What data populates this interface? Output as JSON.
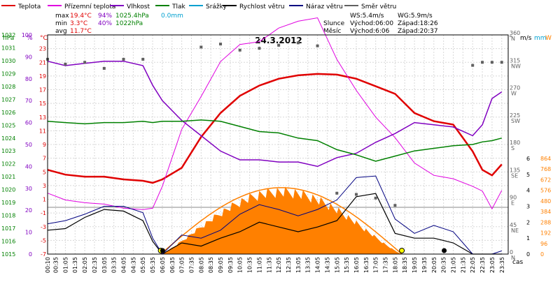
{
  "legend": [
    {
      "label": "Teplota",
      "color": "#e00000"
    },
    {
      "label": "Přízemní teplota",
      "color": "#e000e0"
    },
    {
      "label": "Vlhkost",
      "color": "#8000c0"
    },
    {
      "label": "Tlak",
      "color": "#008000"
    },
    {
      "label": "Srážky",
      "color": "#00a0d0"
    },
    {
      "label": "Rychlost větru",
      "color": "#000000"
    },
    {
      "label": "Náraz větru",
      "color": "#000080"
    },
    {
      "label": "Směr větru",
      "color": "#606060"
    }
  ],
  "stats": {
    "max_label": "max",
    "min_label": "min",
    "avg_label": "avg",
    "max_temp": "19.4°C",
    "max_hum": "94%",
    "max_press": "1025.4hPa",
    "max_rain": "0.0mm",
    "min_temp": "3.3°C",
    "min_hum": "40%",
    "min_press": "1022hPa",
    "avg_temp": "11.7°C"
  },
  "wind": {
    "ws": "WS:5.4m/s",
    "wg": "WG:5.9m/s"
  },
  "sun": {
    "label": "Slunce",
    "rise": "Východ:06:00",
    "set": "Západ:18:26"
  },
  "moon": {
    "label": "Měsíc",
    "rise": "Východ:6:06",
    "set": "Západ:20:37"
  },
  "date": "24.3.2012",
  "axis_units": {
    "hpa": "hPa",
    "pct": "%",
    "degc": "°C",
    "deg": "°",
    "ms": "m/s",
    "mm": "mm",
    "wm2": "W",
    "time": "čas"
  },
  "axes": {
    "pressure": [
      "1032",
      "1031",
      "1030",
      "1029",
      "1028",
      "1027",
      "1026",
      "1025",
      "1024",
      "1023",
      "1022",
      "1021",
      "1020",
      "1019",
      "1018",
      "1017",
      "1016",
      "1015"
    ],
    "humidity": [
      "100",
      "90",
      "80",
      "70",
      "60",
      "50",
      "40",
      "30",
      "20",
      "10",
      "0"
    ],
    "temperature": [
      "23",
      "21",
      "19",
      "17",
      "15",
      "13",
      "11",
      "9",
      "7",
      "5",
      "3",
      "1",
      "-1",
      "-3",
      "-5",
      "-7"
    ],
    "direction": [
      "360",
      "315",
      "270",
      "225",
      "180",
      "135",
      "90",
      "45",
      "0"
    ],
    "direction_labels": [
      "N",
      "NW",
      "W",
      "SW",
      "S",
      "SE",
      "E",
      "NE",
      "N"
    ],
    "wind_speed": [
      "6",
      "5",
      "4",
      "3",
      "2",
      "1",
      "0"
    ],
    "solar": [
      "864",
      "768",
      "672",
      "576",
      "480",
      "384",
      "288",
      "192",
      "96",
      "0"
    ],
    "time": [
      "00:10",
      "00:35",
      "01:05",
      "01:35",
      "02:05",
      "02:35",
      "03:05",
      "03:35",
      "04:05",
      "04:35",
      "05:05",
      "05:35",
      "06:05",
      "06:35",
      "07:05",
      "07:35",
      "08:05",
      "08:35",
      "09:05",
      "09:35",
      "10:05",
      "10:35",
      "11:05",
      "11:35",
      "12:05",
      "12:35",
      "13:05",
      "13:35",
      "14:05",
      "14:35",
      "15:05",
      "15:35",
      "16:05",
      "16:35",
      "17:05",
      "17:35",
      "18:05",
      "18:35",
      "19:05",
      "19:35",
      "20:05",
      "20:35",
      "21:05",
      "21:35",
      "22:05",
      "22:35",
      "23:05",
      "23:35"
    ]
  },
  "chart_data": {
    "type": "line",
    "title": "24.3.2012",
    "xlabel": "čas",
    "x": [
      "00:10",
      "01:05",
      "02:05",
      "03:05",
      "04:05",
      "05:05",
      "05:35",
      "06:05",
      "07:05",
      "08:05",
      "09:05",
      "10:05",
      "11:05",
      "12:05",
      "13:05",
      "14:05",
      "15:05",
      "16:05",
      "17:05",
      "18:05",
      "19:05",
      "20:05",
      "21:05",
      "22:05",
      "22:35",
      "23:05",
      "23:35"
    ],
    "series": [
      {
        "name": "Teplota",
        "unit": "°C",
        "values": [
          5.3,
          4.6,
          4.3,
          4.3,
          3.9,
          3.7,
          3.4,
          3.9,
          5.6,
          10.1,
          13.6,
          16.1,
          17.6,
          18.6,
          19.1,
          19.3,
          19.2,
          18.6,
          17.5,
          16.4,
          13.6,
          12.4,
          11.9,
          8.0,
          5.3,
          4.5,
          6.1
        ]
      },
      {
        "name": "Přízemní teplota",
        "unit": "°C",
        "values": [
          1.9,
          0.9,
          0.5,
          0.3,
          -0.3,
          -0.5,
          -0.3,
          2.9,
          11.2,
          16.0,
          21.1,
          23.6,
          24.0,
          26.0,
          27.0,
          27.5,
          21.4,
          16.9,
          13.0,
          10.0,
          6.3,
          4.5,
          4.0,
          2.9,
          2.2,
          -0.4,
          2.3
        ]
      },
      {
        "name": "Vlhkost",
        "unit": "%",
        "values": [
          88,
          86,
          87,
          88,
          88,
          86,
          77,
          70,
          61,
          54,
          47,
          43,
          43,
          42,
          42,
          40,
          44,
          46,
          51,
          55,
          60,
          59,
          58,
          54,
          59,
          71,
          74
        ]
      },
      {
        "name": "Tlak",
        "unit": "hPa",
        "values": [
          1025.3,
          1025.2,
          1025.1,
          1025.2,
          1025.2,
          1025.3,
          1025.2,
          1025.3,
          1025.3,
          1025.4,
          1025.3,
          1024.9,
          1024.5,
          1024.4,
          1024.0,
          1023.8,
          1023.1,
          1022.7,
          1022.2,
          1022.6,
          1023.0,
          1023.2,
          1023.4,
          1023.5,
          1023.7,
          1023.8,
          1024.0
        ]
      },
      {
        "name": "Rychlost větru",
        "unit": "m/s",
        "values": [
          1.5,
          1.6,
          2.3,
          2.8,
          2.7,
          2.1,
          0.8,
          0.0,
          0.7,
          0.5,
          1.0,
          1.4,
          2.0,
          1.7,
          1.4,
          1.7,
          2.1,
          3.6,
          3.8,
          1.3,
          1.0,
          1.0,
          0.7,
          0.0,
          0.0,
          0.0,
          0.0
        ]
      },
      {
        "name": "Náraz větru",
        "unit": "m/s",
        "values": [
          1.9,
          2.1,
          2.5,
          3.0,
          3.0,
          2.6,
          1.0,
          0.0,
          1.2,
          1.0,
          1.5,
          2.5,
          3.1,
          2.8,
          2.4,
          2.8,
          3.4,
          4.8,
          4.9,
          2.2,
          1.3,
          1.8,
          1.4,
          0.0,
          0.0,
          0.0,
          0.2
        ]
      },
      {
        "name": "Směr větru",
        "unit": "°",
        "values": [
          320,
          312,
          315,
          305,
          320,
          320,
          null,
          null,
          null,
          340,
          345,
          335,
          338,
          343,
          347,
          342,
          100,
          98,
          92,
          80,
          null,
          null,
          null,
          310,
          315,
          315,
          315
        ]
      }
    ],
    "solar_radiation_max": 620,
    "solar_clear_sky_max": 600,
    "axis_ranges": {
      "temperature_c": [
        -7,
        25
      ],
      "humidity_pct": [
        0,
        100
      ],
      "pressure_hpa": [
        1015,
        1032
      ],
      "wind_ms": [
        0,
        6
      ],
      "direction_deg": [
        0,
        360
      ],
      "solar_wm2": [
        0,
        864
      ]
    },
    "grid": true
  }
}
